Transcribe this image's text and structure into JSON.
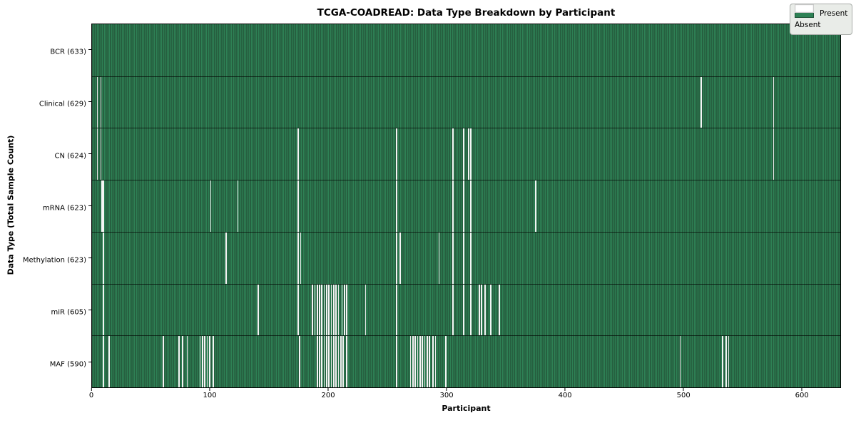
{
  "title": "TCGA-COADREAD: Data Type Breakdown by Participant",
  "legend": {
    "present_label": "Present",
    "absent_label": "Absent"
  },
  "colors": {
    "present": "#2e8155",
    "present_edge": "#1e3f2c",
    "absent": "#ffffff",
    "legend_bg": "#e9ece8",
    "legend_border": "#a8aca8"
  },
  "chart_data": {
    "type": "heatmap",
    "title": "TCGA-COADREAD: Data Type Breakdown by Participant",
    "xlabel": "Participant",
    "ylabel": "Data Type (Total Sample Count)",
    "x_ticks": [
      0,
      100,
      200,
      300,
      400,
      500,
      600
    ],
    "xlim": [
      0,
      633
    ],
    "n_participants": 633,
    "grid": false,
    "legend_entries": [
      "Present",
      "Absent"
    ],
    "legend_position": "upper right",
    "rows": [
      {
        "label": "BCR",
        "total": 633,
        "display": "BCR (633)",
        "absent_participants": []
      },
      {
        "label": "Clinical",
        "total": 629,
        "display": "Clinical (629)",
        "absent_participants": [
          4,
          7,
          515,
          576
        ]
      },
      {
        "label": "CN",
        "total": 624,
        "display": "CN (624)",
        "absent_participants": [
          4,
          7,
          174,
          257,
          305,
          314,
          318,
          320,
          576
        ]
      },
      {
        "label": "mRNA",
        "total": 623,
        "display": "mRNA (623)",
        "absent_participants": [
          8,
          9,
          100,
          123,
          174,
          257,
          305,
          314,
          320,
          375
        ]
      },
      {
        "label": "Methylation",
        "total": 623,
        "display": "Methylation (623)",
        "absent_participants": [
          9,
          113,
          174,
          176,
          257,
          260,
          293,
          305,
          314,
          320
        ]
      },
      {
        "label": "miR",
        "total": 605,
        "display": "miR (605)",
        "absent_participants": [
          9,
          140,
          174,
          186,
          188,
          190,
          192,
          194,
          196,
          198,
          200,
          202,
          204,
          206,
          208,
          211,
          213,
          215,
          231,
          257,
          305,
          314,
          320,
          327,
          329,
          332,
          337,
          344
        ]
      },
      {
        "label": "MAF",
        "total": 590,
        "display": "MAF (590)",
        "absent_participants": [
          9,
          14,
          60,
          73,
          76,
          80,
          91,
          93,
          95,
          97,
          99,
          102,
          175,
          190,
          192,
          194,
          196,
          198,
          200,
          202,
          204,
          206,
          208,
          210,
          212,
          215,
          257,
          269,
          271,
          273,
          275,
          277,
          279,
          281,
          283,
          285,
          288,
          290,
          299,
          497,
          533,
          536,
          538
        ]
      }
    ]
  }
}
